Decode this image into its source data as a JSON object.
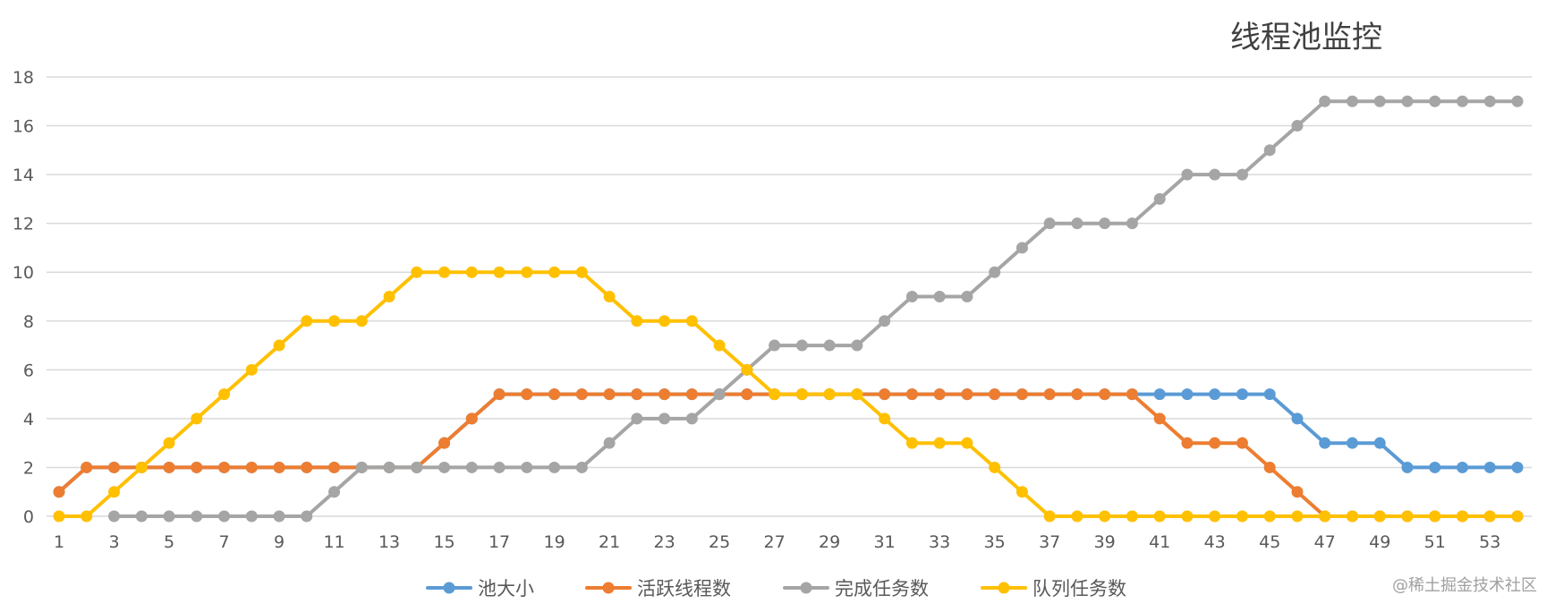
{
  "chart_data": {
    "type": "line",
    "title": "线程池监控",
    "xlabel": "",
    "ylabel": "",
    "ylim": [
      0,
      18
    ],
    "y_ticks": [
      0,
      2,
      4,
      6,
      8,
      10,
      12,
      14,
      16,
      18
    ],
    "x": [
      1,
      2,
      3,
      4,
      5,
      6,
      7,
      8,
      9,
      10,
      11,
      12,
      13,
      14,
      15,
      16,
      17,
      18,
      19,
      20,
      21,
      22,
      23,
      24,
      25,
      26,
      27,
      28,
      29,
      30,
      31,
      32,
      33,
      34,
      35,
      36,
      37,
      38,
      39,
      40,
      41,
      42,
      43,
      44,
      45,
      46,
      47,
      48,
      49,
      50,
      51,
      52,
      53,
      54
    ],
    "x_tick_labels": [
      "1",
      "3",
      "5",
      "7",
      "9",
      "11",
      "13",
      "15",
      "17",
      "19",
      "21",
      "23",
      "25",
      "27",
      "29",
      "31",
      "33",
      "35",
      "37",
      "39",
      "41",
      "43",
      "45",
      "47",
      "49",
      "51",
      "53"
    ],
    "grid": true,
    "legend_position": "bottom",
    "series": [
      {
        "name": "池大小",
        "color": "#5B9BD5",
        "values": [
          1,
          2,
          2,
          2,
          2,
          2,
          2,
          2,
          2,
          2,
          2,
          2,
          2,
          2,
          3,
          4,
          5,
          5,
          5,
          5,
          5,
          5,
          5,
          5,
          5,
          5,
          5,
          5,
          5,
          5,
          5,
          5,
          5,
          5,
          5,
          5,
          5,
          5,
          5,
          5,
          5,
          5,
          5,
          5,
          5,
          4,
          3,
          3,
          3,
          2,
          2,
          2,
          2,
          2
        ]
      },
      {
        "name": "活跃线程数",
        "color": "#ED7D31",
        "values": [
          1,
          2,
          2,
          2,
          2,
          2,
          2,
          2,
          2,
          2,
          2,
          2,
          2,
          2,
          3,
          4,
          5,
          5,
          5,
          5,
          5,
          5,
          5,
          5,
          5,
          5,
          5,
          5,
          5,
          5,
          5,
          5,
          5,
          5,
          5,
          5,
          5,
          5,
          5,
          5,
          4,
          3,
          3,
          3,
          2,
          1,
          0,
          0,
          0,
          0,
          0,
          0,
          0,
          0
        ]
      },
      {
        "name": "完成任务数",
        "color": "#A5A5A5",
        "values": [
          null,
          null,
          0,
          0,
          0,
          0,
          0,
          0,
          0,
          0,
          1,
          2,
          2,
          2,
          2,
          2,
          2,
          2,
          2,
          2,
          3,
          4,
          4,
          4,
          5,
          6,
          7,
          7,
          7,
          7,
          8,
          9,
          9,
          9,
          10,
          11,
          12,
          12,
          12,
          12,
          13,
          14,
          14,
          14,
          15,
          16,
          17,
          17,
          17,
          17,
          17,
          17,
          17,
          17
        ]
      },
      {
        "name": "队列任务数",
        "color": "#FFC000",
        "values": [
          0,
          0,
          1,
          2,
          3,
          4,
          5,
          6,
          7,
          8,
          8,
          8,
          9,
          10,
          10,
          10,
          10,
          10,
          10,
          10,
          9,
          8,
          8,
          8,
          7,
          6,
          5,
          5,
          5,
          5,
          4,
          3,
          3,
          3,
          2,
          1,
          0,
          0,
          0,
          0,
          0,
          0,
          0,
          0,
          0,
          0,
          0,
          0,
          0,
          0,
          0,
          0,
          0,
          0
        ]
      }
    ]
  },
  "watermark": "@稀土掘金技术社区"
}
